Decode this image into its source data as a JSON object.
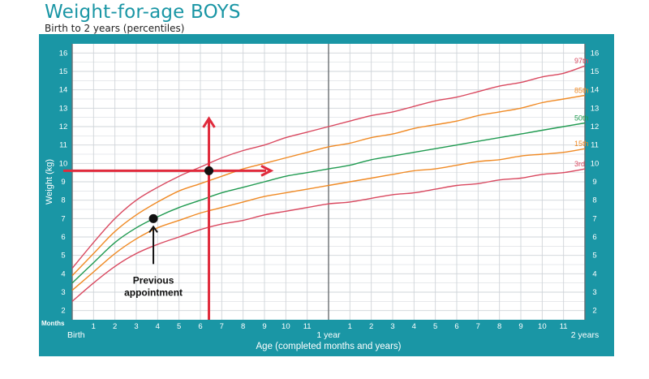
{
  "chart_data": {
    "type": "line",
    "title": "Weight-for-age BOYS",
    "subtitle": "Birth to 2 years (percentiles)",
    "xlabel": "Age (completed months and years)",
    "ylabel": "Weight (kg)",
    "months_label": "Months",
    "xlim": [
      0,
      24
    ],
    "ylim": [
      1.5,
      16.5
    ],
    "y_ticks": [
      2,
      3,
      4,
      5,
      6,
      7,
      8,
      9,
      10,
      11,
      12,
      13,
      14,
      15,
      16
    ],
    "x_month_ticks": [
      {
        "x": 1,
        "label": "1"
      },
      {
        "x": 2,
        "label": "2"
      },
      {
        "x": 3,
        "label": "3"
      },
      {
        "x": 4,
        "label": "4"
      },
      {
        "x": 5,
        "label": "5"
      },
      {
        "x": 6,
        "label": "6"
      },
      {
        "x": 7,
        "label": "7"
      },
      {
        "x": 8,
        "label": "8"
      },
      {
        "x": 9,
        "label": "9"
      },
      {
        "x": 10,
        "label": "10"
      },
      {
        "x": 11,
        "label": "11"
      },
      {
        "x": 13,
        "label": "1"
      },
      {
        "x": 14,
        "label": "2"
      },
      {
        "x": 15,
        "label": "3"
      },
      {
        "x": 16,
        "label": "4"
      },
      {
        "x": 17,
        "label": "5"
      },
      {
        "x": 18,
        "label": "6"
      },
      {
        "x": 19,
        "label": "7"
      },
      {
        "x": 20,
        "label": "8"
      },
      {
        "x": 21,
        "label": "9"
      },
      {
        "x": 22,
        "label": "10"
      },
      {
        "x": 23,
        "label": "11"
      }
    ],
    "x_year_labels": [
      {
        "x": 0,
        "label": "Birth"
      },
      {
        "x": 12,
        "label": "1 year"
      },
      {
        "x": 24,
        "label": "2 years"
      }
    ],
    "x": [
      0,
      1,
      2,
      3,
      4,
      5,
      6,
      7,
      8,
      9,
      10,
      11,
      12,
      13,
      14,
      15,
      16,
      17,
      18,
      19,
      20,
      21,
      22,
      23,
      24
    ],
    "series": [
      {
        "name": "97th",
        "color": "#d9485f",
        "values": [
          4.3,
          5.7,
          7.0,
          8.0,
          8.7,
          9.3,
          9.8,
          10.3,
          10.7,
          11.0,
          11.4,
          11.7,
          12.0,
          12.3,
          12.6,
          12.8,
          13.1,
          13.4,
          13.6,
          13.9,
          14.2,
          14.4,
          14.7,
          14.9,
          15.3
        ]
      },
      {
        "name": "85th",
        "color": "#f08a24",
        "values": [
          3.9,
          5.1,
          6.3,
          7.2,
          7.9,
          8.5,
          8.9,
          9.3,
          9.7,
          10.0,
          10.3,
          10.6,
          10.9,
          11.1,
          11.4,
          11.6,
          11.9,
          12.1,
          12.3,
          12.6,
          12.8,
          13.0,
          13.3,
          13.5,
          13.7
        ]
      },
      {
        "name": "50th",
        "color": "#1f9a50",
        "values": [
          3.5,
          4.6,
          5.7,
          6.5,
          7.1,
          7.6,
          8.0,
          8.4,
          8.7,
          9.0,
          9.3,
          9.5,
          9.7,
          9.9,
          10.2,
          10.4,
          10.6,
          10.8,
          11.0,
          11.2,
          11.4,
          11.6,
          11.8,
          12.0,
          12.2
        ]
      },
      {
        "name": "15th",
        "color": "#f08a24",
        "values": [
          3.1,
          4.1,
          5.1,
          5.9,
          6.5,
          6.9,
          7.3,
          7.6,
          7.9,
          8.2,
          8.4,
          8.6,
          8.8,
          9.0,
          9.2,
          9.4,
          9.6,
          9.7,
          9.9,
          10.1,
          10.2,
          10.4,
          10.5,
          10.6,
          10.8
        ]
      },
      {
        "name": "3rd",
        "color": "#d9485f",
        "values": [
          2.5,
          3.5,
          4.4,
          5.1,
          5.6,
          6.0,
          6.4,
          6.7,
          6.9,
          7.2,
          7.4,
          7.6,
          7.8,
          7.9,
          8.1,
          8.3,
          8.4,
          8.6,
          8.8,
          8.9,
          9.1,
          9.2,
          9.4,
          9.5,
          9.7
        ]
      }
    ],
    "points": [
      {
        "x": 3.8,
        "y": 7.0,
        "label": "Previous appointment"
      },
      {
        "x": 6.4,
        "y": 9.6
      }
    ],
    "reference_lines": {
      "age": 6.4,
      "weight": 9.6,
      "color": "#e02b3c"
    }
  },
  "colors": {
    "frame": "#1a96a5",
    "grid": "#cfd4d9",
    "grid_strong": "#6b6f73"
  }
}
